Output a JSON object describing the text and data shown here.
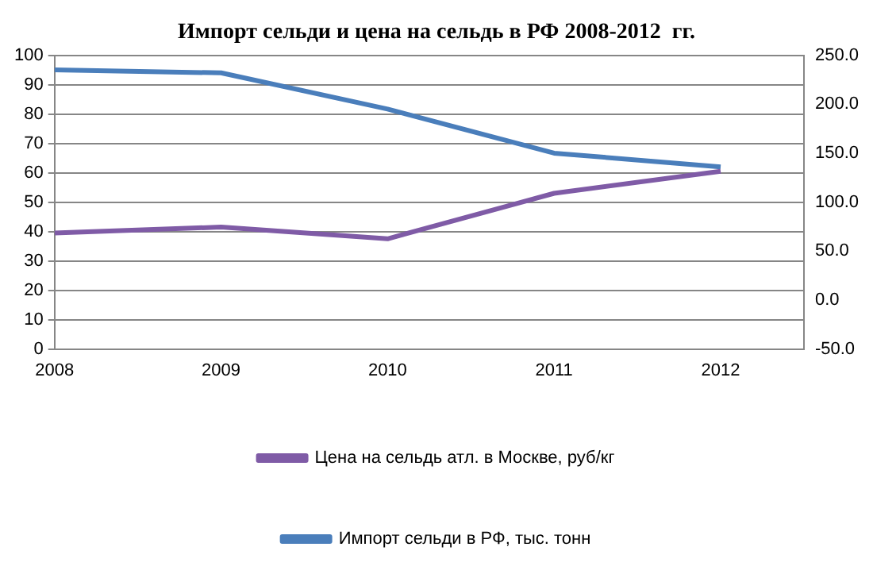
{
  "chart_data": {
    "type": "line",
    "title": "Импорт сельди и цена на сельдь в РФ 2008-2012  гг.",
    "x": [
      2008,
      2009,
      2010,
      2011,
      2012
    ],
    "series": [
      {
        "name": "Цена на сельдь атл. в Москве, руб/кг",
        "color": "#7f5ba6",
        "values": [
          39.5,
          41.5,
          37.5,
          53,
          60.5
        ]
      },
      {
        "name": "Импорт сельди в РФ, тыс. тонн",
        "color": "#4a7ebb",
        "values": [
          235,
          232,
          195,
          150,
          136
        ],
        "axis": "y2"
      }
    ],
    "xlim": [
      2008,
      2012.5
    ],
    "xticks": [
      2008,
      2009,
      2010,
      2011,
      2012
    ],
    "ylim": [
      0,
      100
    ],
    "yticks": [
      0,
      10,
      20,
      30,
      40,
      50,
      60,
      70,
      80,
      90,
      100
    ],
    "y2lim": [
      -50,
      250
    ],
    "y2ticks": [
      {
        "value": -50,
        "label": "-50.0"
      },
      {
        "value": 0,
        "label": "0.0"
      },
      {
        "value": 50,
        "label": "50.0"
      },
      {
        "value": 100,
        "label": "100.0"
      },
      {
        "value": 150,
        "label": "150.0"
      },
      {
        "value": 200,
        "label": "200.0"
      },
      {
        "value": 250,
        "label": "250.0"
      }
    ],
    "grid": "y",
    "legend": "bottom",
    "marker": "none",
    "line_style": "solid"
  }
}
